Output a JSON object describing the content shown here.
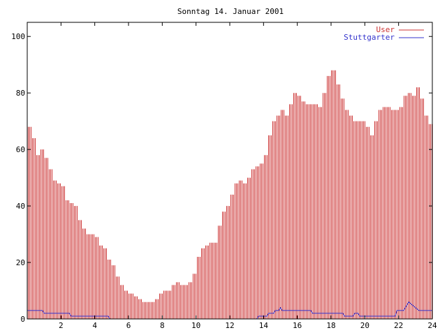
{
  "chart_data": {
    "type": "bar",
    "title": "Sonntag 14. Januar 2001",
    "xlabel": "",
    "ylabel": "",
    "xlim": [
      0,
      24
    ],
    "ylim": [
      0,
      105
    ],
    "x_ticks": [
      2,
      4,
      6,
      8,
      10,
      12,
      14,
      16,
      18,
      20,
      22,
      24
    ],
    "y_ticks": [
      0,
      20,
      40,
      60,
      80,
      100
    ],
    "grid": false,
    "legend_position": "top-right",
    "series": [
      {
        "name": "User",
        "type": "bar",
        "color": "#cc3333",
        "points": [
          [
            0,
            68
          ],
          [
            0.25,
            64
          ],
          [
            0.5,
            58
          ],
          [
            0.75,
            60
          ],
          [
            1,
            57
          ],
          [
            1.25,
            53
          ],
          [
            1.5,
            49
          ],
          [
            1.75,
            48
          ],
          [
            2,
            47
          ],
          [
            2.25,
            42
          ],
          [
            2.5,
            41
          ],
          [
            2.75,
            40
          ],
          [
            3,
            35
          ],
          [
            3.25,
            32
          ],
          [
            3.5,
            30
          ],
          [
            3.75,
            30
          ],
          [
            4,
            29
          ],
          [
            4.25,
            26
          ],
          [
            4.5,
            25
          ],
          [
            4.75,
            21
          ],
          [
            5,
            19
          ],
          [
            5.25,
            15
          ],
          [
            5.5,
            12
          ],
          [
            5.75,
            10
          ],
          [
            6,
            9
          ],
          [
            6.25,
            8
          ],
          [
            6.5,
            7
          ],
          [
            6.75,
            6
          ],
          [
            7,
            6
          ],
          [
            7.25,
            6
          ],
          [
            7.5,
            7
          ],
          [
            7.75,
            9
          ],
          [
            8,
            10
          ],
          [
            8.25,
            10
          ],
          [
            8.5,
            12
          ],
          [
            8.75,
            13
          ],
          [
            9,
            12
          ],
          [
            9.25,
            12
          ],
          [
            9.5,
            13
          ],
          [
            9.75,
            16
          ],
          [
            10,
            22
          ],
          [
            10.25,
            25
          ],
          [
            10.5,
            26
          ],
          [
            10.75,
            27
          ],
          [
            11,
            27
          ],
          [
            11.25,
            33
          ],
          [
            11.5,
            38
          ],
          [
            11.75,
            40
          ],
          [
            12,
            44
          ],
          [
            12.25,
            48
          ],
          [
            12.5,
            49
          ],
          [
            12.75,
            48
          ],
          [
            13,
            50
          ],
          [
            13.25,
            53
          ],
          [
            13.5,
            54
          ],
          [
            13.75,
            55
          ],
          [
            14,
            58
          ],
          [
            14.25,
            65
          ],
          [
            14.5,
            70
          ],
          [
            14.75,
            72
          ],
          [
            15,
            74
          ],
          [
            15.25,
            72
          ],
          [
            15.5,
            76
          ],
          [
            15.75,
            80
          ],
          [
            16,
            79
          ],
          [
            16.25,
            77
          ],
          [
            16.5,
            76
          ],
          [
            16.75,
            76
          ],
          [
            17,
            76
          ],
          [
            17.25,
            75
          ],
          [
            17.5,
            80
          ],
          [
            17.75,
            86
          ],
          [
            18,
            88
          ],
          [
            18.25,
            83
          ],
          [
            18.5,
            78
          ],
          [
            18.75,
            74
          ],
          [
            19,
            72
          ],
          [
            19.25,
            70
          ],
          [
            19.5,
            70
          ],
          [
            19.75,
            70
          ],
          [
            20,
            68
          ],
          [
            20.25,
            65
          ],
          [
            20.5,
            70
          ],
          [
            20.75,
            74
          ],
          [
            21,
            75
          ],
          [
            21.25,
            75
          ],
          [
            21.5,
            74
          ],
          [
            21.75,
            74
          ],
          [
            22,
            75
          ],
          [
            22.25,
            79
          ],
          [
            22.5,
            80
          ],
          [
            22.75,
            79
          ],
          [
            23,
            82
          ],
          [
            23.25,
            78
          ],
          [
            23.5,
            72
          ],
          [
            23.75,
            69
          ],
          [
            24,
            66
          ]
        ]
      },
      {
        "name": "Stuttgarter",
        "type": "line",
        "color": "#3333cc",
        "points": [
          [
            0,
            3
          ],
          [
            0.9,
            3
          ],
          [
            1,
            2
          ],
          [
            2.5,
            2
          ],
          [
            2.6,
            1
          ],
          [
            4.8,
            1
          ],
          [
            4.9,
            0
          ],
          [
            13.6,
            0
          ],
          [
            13.7,
            1
          ],
          [
            14.2,
            1
          ],
          [
            14.3,
            2
          ],
          [
            14.6,
            2
          ],
          [
            14.7,
            3
          ],
          [
            14.9,
            3
          ],
          [
            15,
            4
          ],
          [
            15.1,
            3
          ],
          [
            16.8,
            3
          ],
          [
            16.9,
            2
          ],
          [
            18.7,
            2
          ],
          [
            18.8,
            1
          ],
          [
            19.3,
            1
          ],
          [
            19.4,
            2
          ],
          [
            19.6,
            2
          ],
          [
            19.7,
            1
          ],
          [
            21.8,
            1
          ],
          [
            21.9,
            3
          ],
          [
            22.3,
            3
          ],
          [
            22.5,
            5
          ],
          [
            22.6,
            6
          ],
          [
            22.8,
            5
          ],
          [
            23,
            4
          ],
          [
            23.2,
            3
          ],
          [
            24,
            3
          ]
        ]
      }
    ]
  }
}
